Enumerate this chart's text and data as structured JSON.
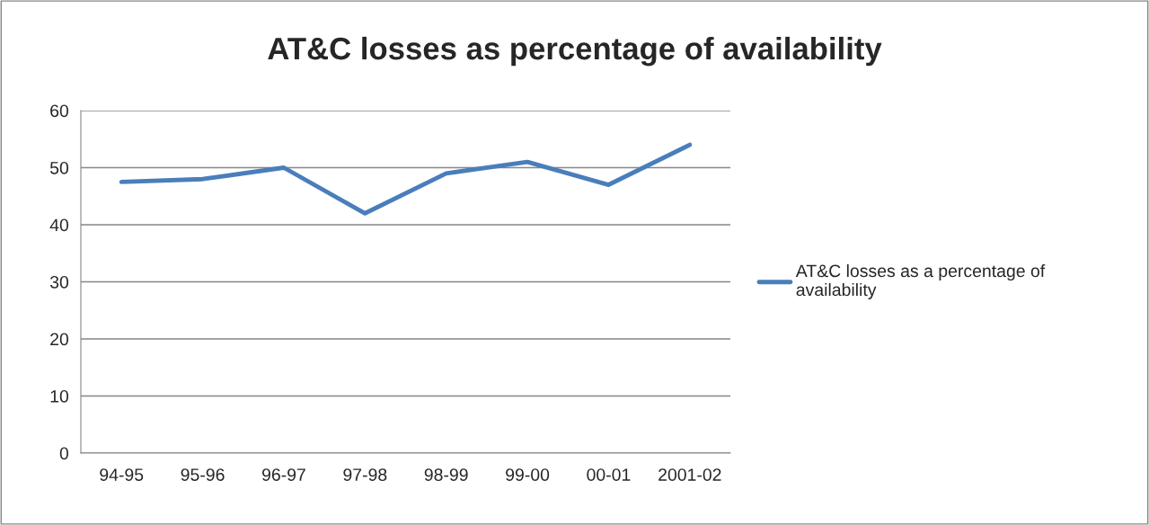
{
  "chart_data": {
    "type": "line",
    "title": "AT&C losses as percentage of availability",
    "categories": [
      "94-95",
      "95-96",
      "96-97",
      "97-98",
      "98-99",
      "99-00",
      "00-01",
      "2001-02"
    ],
    "series": [
      {
        "name": "AT&C losses as a percentage of availability",
        "color": "#4a7ebb",
        "values": [
          47.5,
          48,
          50,
          42,
          49,
          51,
          47,
          54
        ]
      }
    ],
    "ylim": [
      0,
      60
    ],
    "yticks": [
      0,
      10,
      20,
      30,
      40,
      50,
      60
    ],
    "grid": "y",
    "legend": "right",
    "marker": "none",
    "line_style": "solid"
  }
}
